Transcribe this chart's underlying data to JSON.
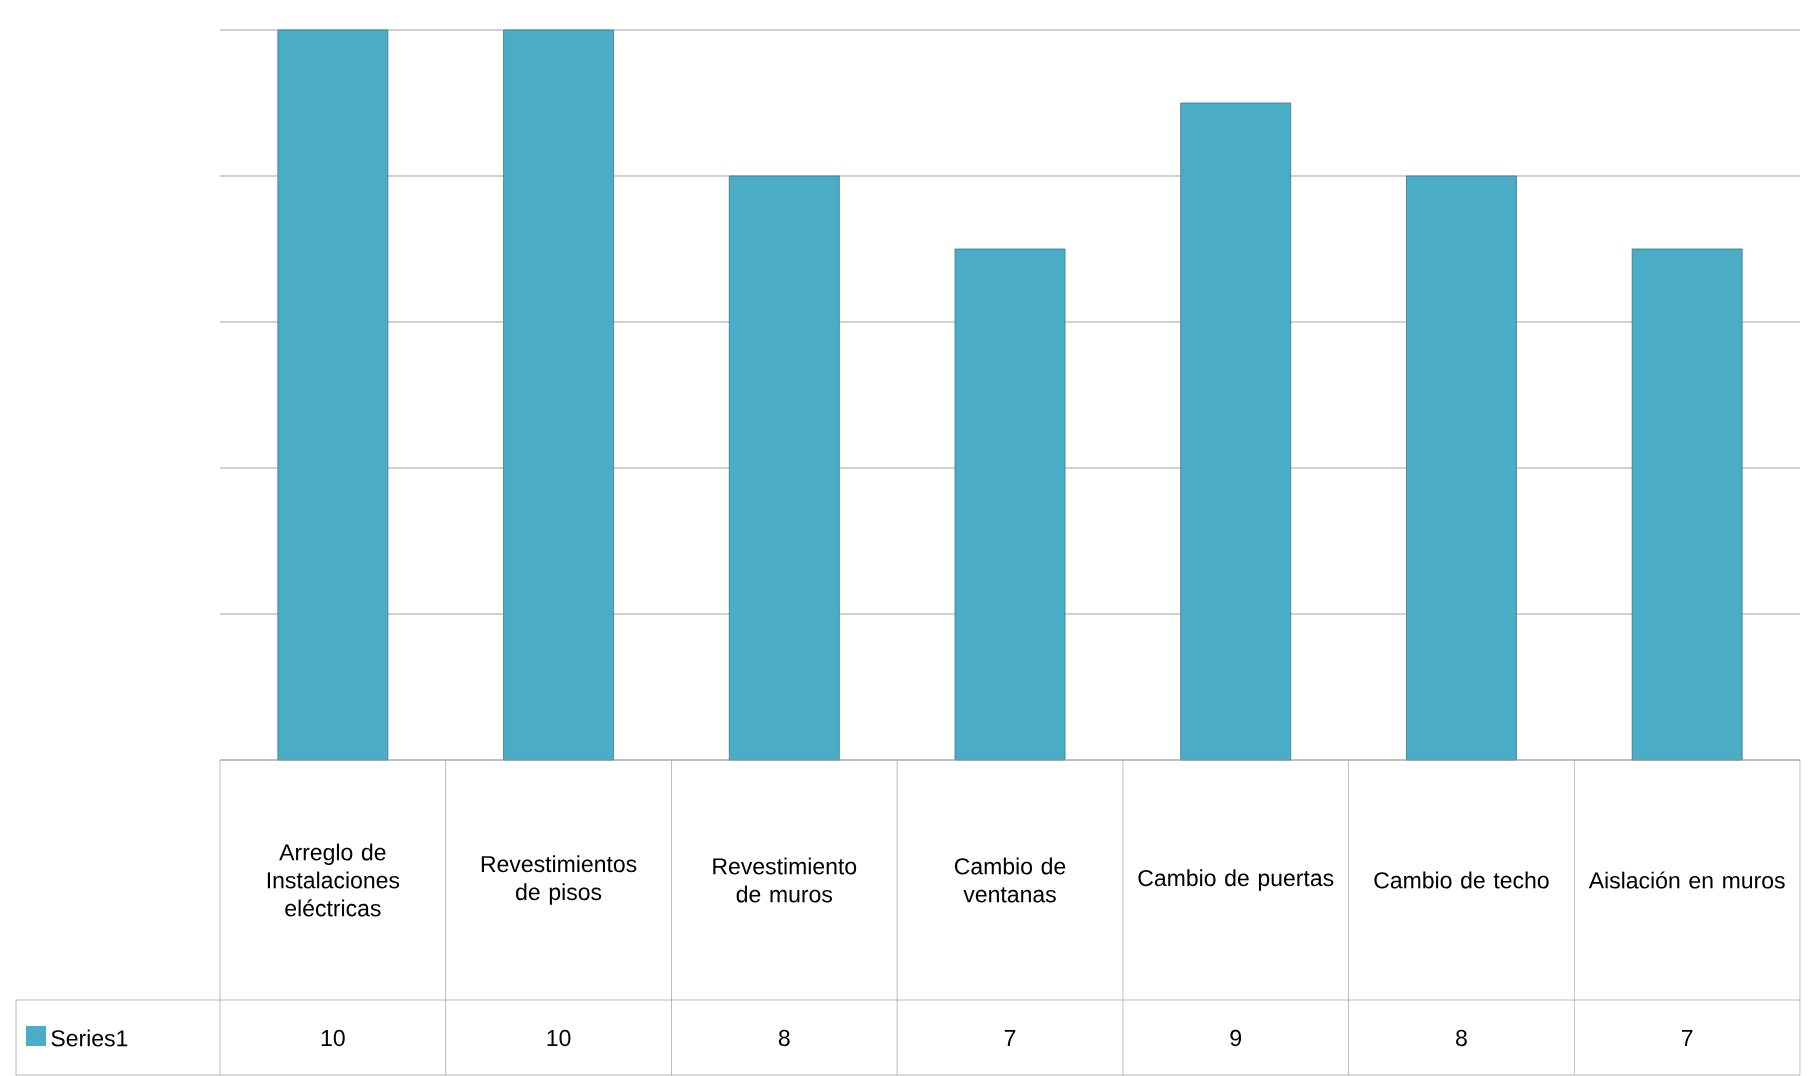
{
  "chart_data": {
    "type": "bar",
    "categories": [
      "Arreglo de Instalaciones eléctricas",
      "Revestimientos de pisos",
      "Revestimiento de muros",
      "Cambio de ventanas",
      "Cambio de puertas",
      "Cambio de techo",
      "Aislación en muros"
    ],
    "series": [
      {
        "name": "Series1",
        "color": "#4bacc6",
        "values": [
          10,
          10,
          8,
          7,
          9,
          8,
          7
        ]
      }
    ],
    "ylim": [
      0,
      10
    ],
    "yticks": [
      {
        "value": 0,
        "label": null
      },
      {
        "value": 2,
        "label": null
      },
      {
        "value": 4,
        "label": null
      },
      {
        "value": 6,
        "label": null
      },
      {
        "value": 8,
        "label": null
      },
      {
        "value": 10,
        "label": null
      }
    ],
    "grid": "y",
    "data_labels": true,
    "tick_labels": "x"
  }
}
